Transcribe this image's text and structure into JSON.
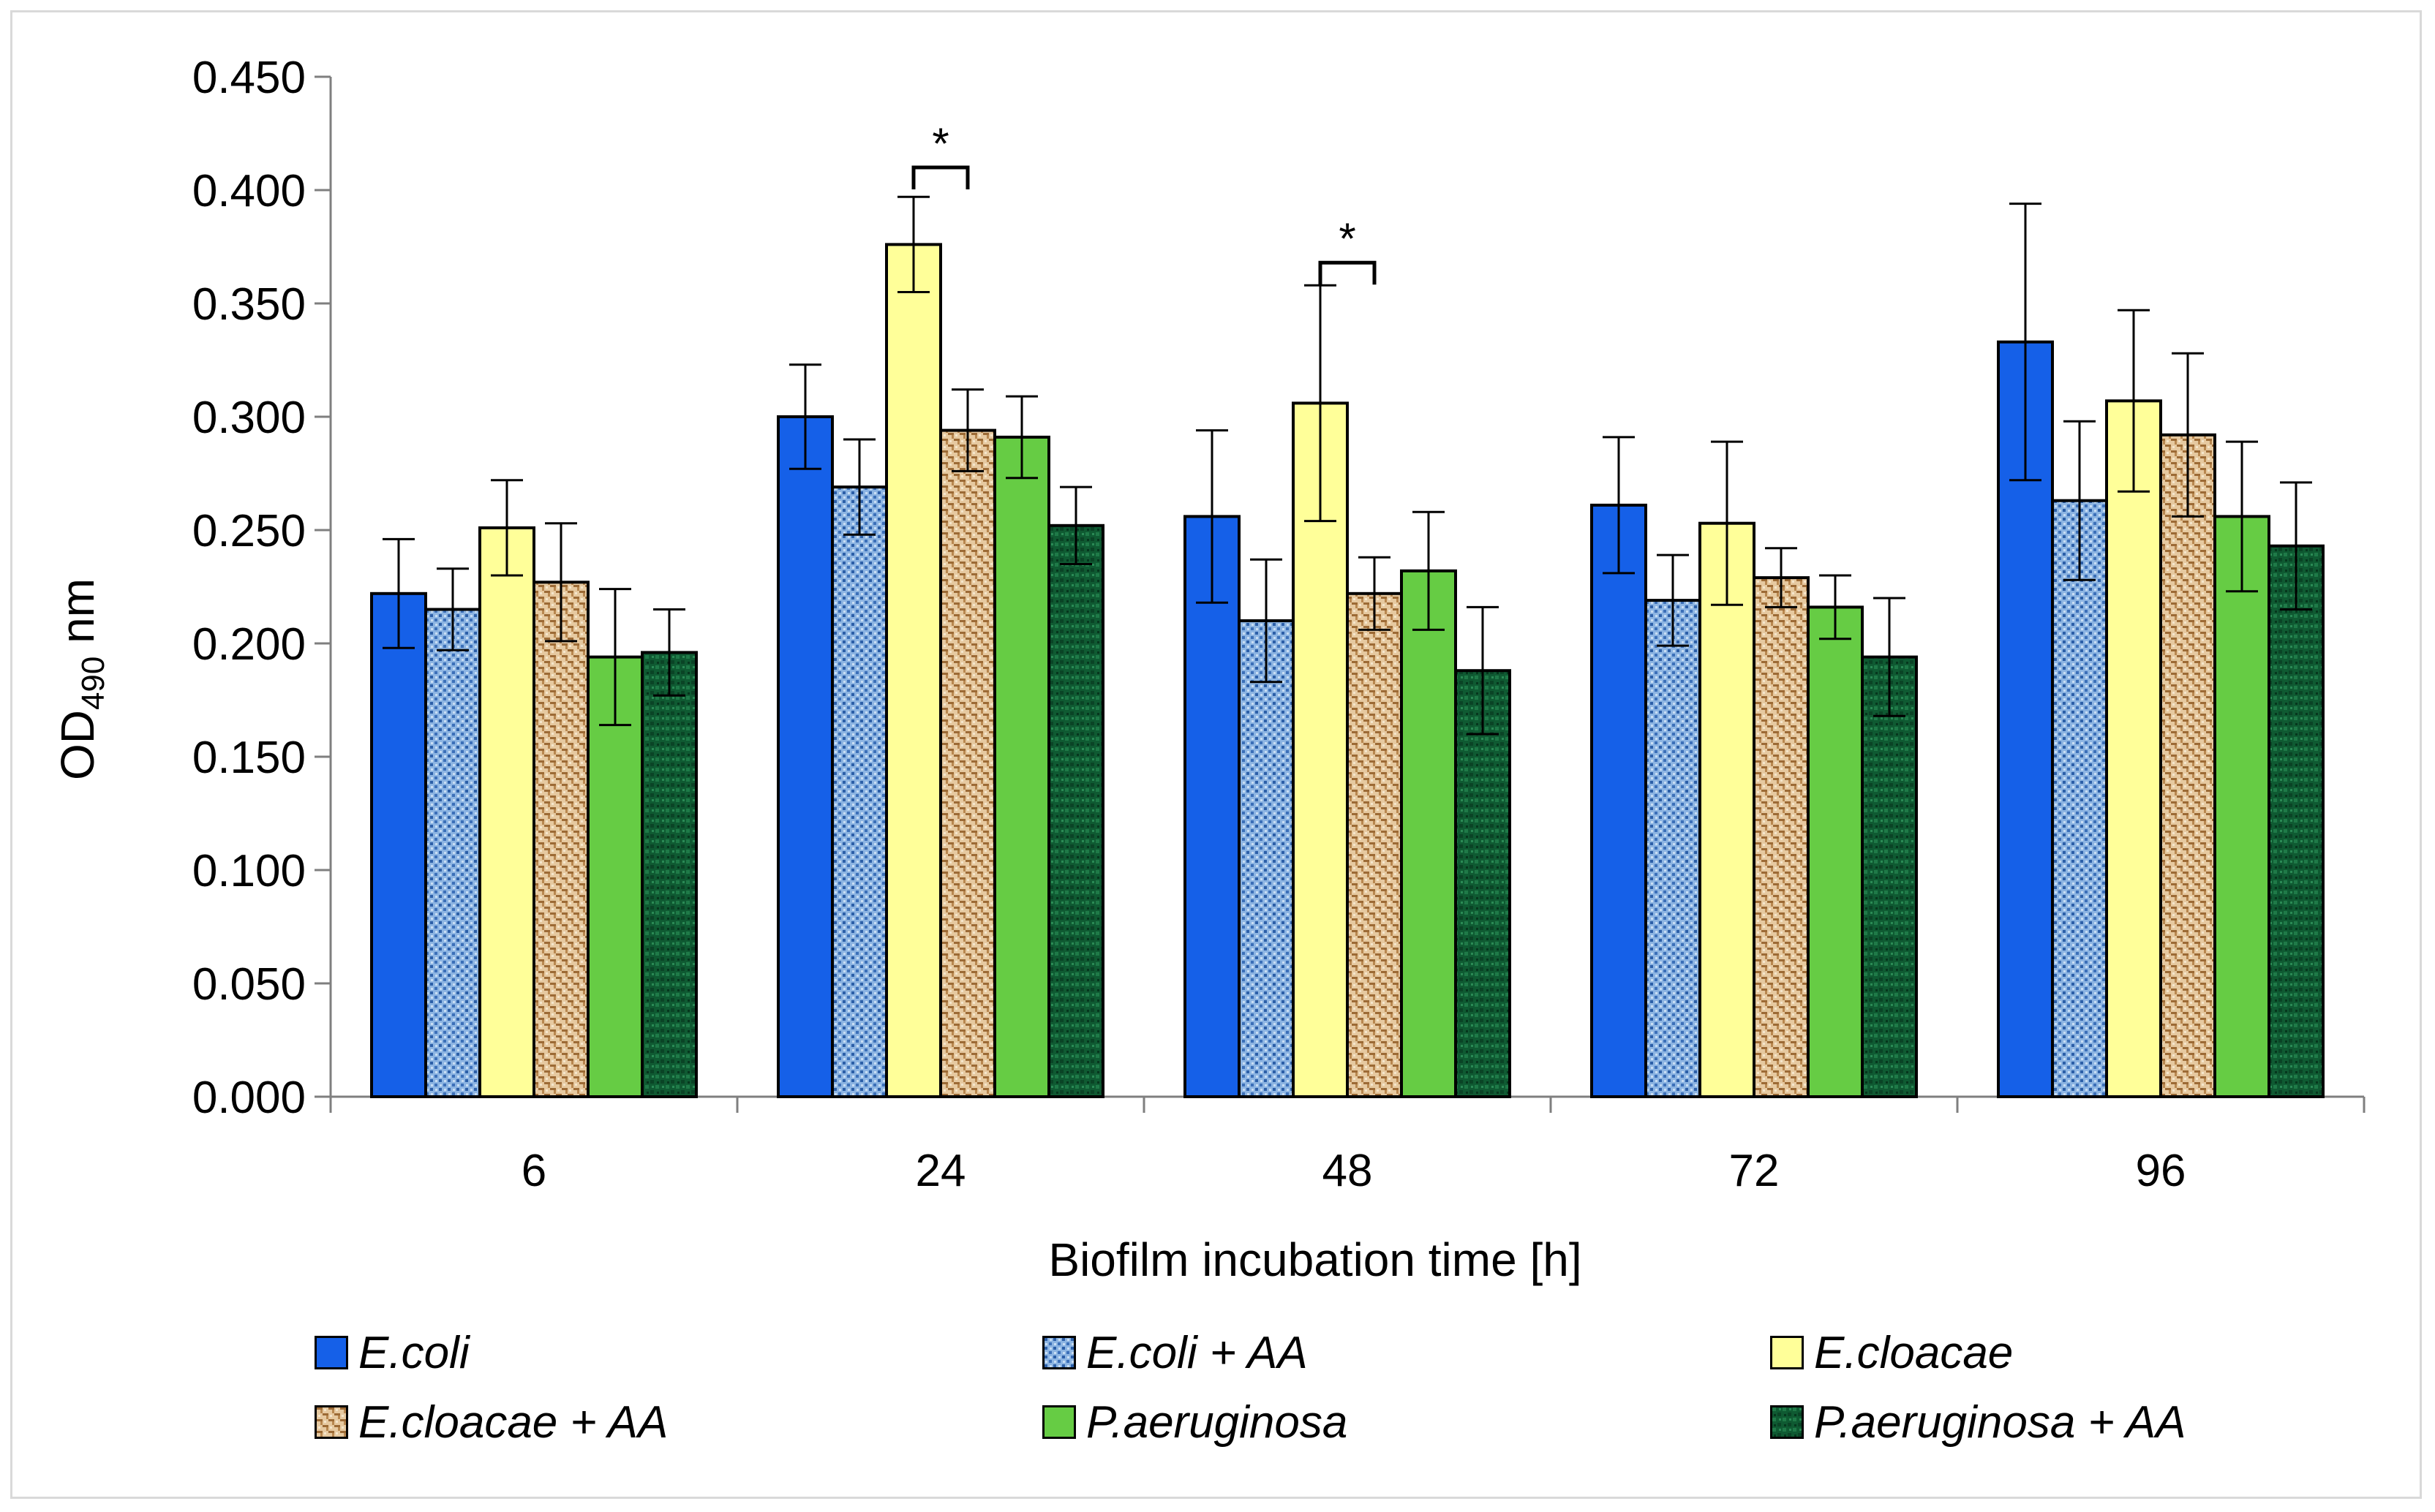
{
  "chart_data": {
    "type": "bar",
    "xlabel": "Biofilm incubation time [h]",
    "ylabel": {
      "prefix": "OD",
      "subscript": "490",
      "suffix": " nm"
    },
    "categories": [
      "6",
      "24",
      "48",
      "72",
      "96"
    ],
    "ylim": [
      0,
      0.45
    ],
    "yticks": [
      "0.000",
      "0.050",
      "0.100",
      "0.150",
      "0.200",
      "0.250",
      "0.300",
      "0.350",
      "0.400",
      "0.450"
    ],
    "ytick_values": [
      0,
      0.05,
      0.1,
      0.15,
      0.2,
      0.25,
      0.3,
      0.35,
      0.4,
      0.45
    ],
    "grid": false,
    "legend_position": "bottom",
    "series": [
      {
        "name": "E.coli",
        "color": "#1560e8",
        "pattern": "solid",
        "values": [
          0.222,
          0.3,
          0.256,
          0.261,
          0.333
        ],
        "errors": [
          0.024,
          0.023,
          0.038,
          0.03,
          0.061
        ]
      },
      {
        "name": "E.coli + AA",
        "color": "#7fa8d8",
        "pattern": "blue-dots",
        "values": [
          0.215,
          0.269,
          0.21,
          0.219,
          0.263
        ],
        "errors": [
          0.018,
          0.021,
          0.027,
          0.02,
          0.035
        ]
      },
      {
        "name": "E.cloacae",
        "color": "#ffff99",
        "pattern": "solid",
        "values": [
          0.251,
          0.376,
          0.306,
          0.253,
          0.307
        ],
        "errors": [
          0.021,
          0.021,
          0.052,
          0.036,
          0.04
        ]
      },
      {
        "name": "E.cloacae + AA",
        "color": "#d9b48c",
        "pattern": "tan-weave",
        "values": [
          0.227,
          0.294,
          0.222,
          0.229,
          0.292
        ],
        "errors": [
          0.026,
          0.018,
          0.016,
          0.013,
          0.036
        ]
      },
      {
        "name": "P.aeruginosa",
        "color": "#66cc44",
        "pattern": "solid",
        "values": [
          0.194,
          0.291,
          0.232,
          0.216,
          0.256
        ],
        "errors": [
          0.03,
          0.018,
          0.026,
          0.014,
          0.033
        ]
      },
      {
        "name": "P.aeruginosa + AA",
        "color": "#0d5a30",
        "pattern": "dark-green-texture",
        "values": [
          0.196,
          0.252,
          0.188,
          0.194,
          0.243
        ],
        "errors": [
          0.019,
          0.017,
          0.028,
          0.026,
          0.028
        ]
      }
    ],
    "annotations": [
      {
        "text": "*",
        "category": "24",
        "between": [
          "E.cloacae",
          "E.cloacae + AA"
        ],
        "bracket_value": 0.41
      },
      {
        "text": "*",
        "category": "48",
        "between": [
          "E.cloacae",
          "E.cloacae + AA"
        ],
        "bracket_value": 0.368
      }
    ]
  }
}
